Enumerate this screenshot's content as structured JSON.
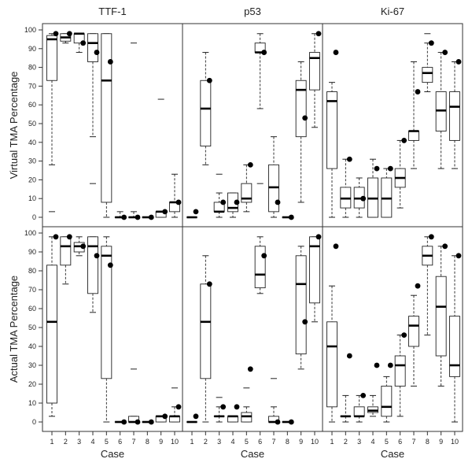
{
  "chart_data": {
    "type": "boxplot",
    "columns": [
      "TTF-1",
      "p53",
      "Ki-67"
    ],
    "rows": [
      "Virtual TMA Percentage",
      "Actual TMA Percentage"
    ],
    "xlabel": "Case",
    "categories": [
      "1",
      "2",
      "3",
      "4",
      "5",
      "6",
      "7",
      "8",
      "9",
      "10"
    ],
    "ylim": [
      0,
      100
    ],
    "yticks": [
      0,
      10,
      20,
      30,
      40,
      50,
      60,
      70,
      80,
      90,
      100
    ],
    "panels": [
      {
        "row": "Virtual TMA Percentage",
        "column": "TTF-1",
        "cases": [
          {
            "case": "1",
            "wlow": 28,
            "q1": 73,
            "median": 95,
            "q3": 97,
            "whigh": 98,
            "point": 98,
            "outliers": [
              3
            ]
          },
          {
            "case": "2",
            "wlow": 93,
            "q1": 94,
            "median": 96,
            "q3": 98,
            "whigh": 98,
            "point": 98,
            "outliers": []
          },
          {
            "case": "3",
            "wlow": 88,
            "q1": 93,
            "median": 98,
            "q3": 98,
            "whigh": 98,
            "point": 93,
            "outliers": []
          },
          {
            "case": "4",
            "wlow": 43,
            "q1": 83,
            "median": 93,
            "q3": 98,
            "whigh": 98,
            "point": 88,
            "outliers": [
              18
            ]
          },
          {
            "case": "5",
            "wlow": 0,
            "q1": 8,
            "median": 73,
            "q3": 98,
            "whigh": 98,
            "point": 83,
            "outliers": []
          },
          {
            "case": "6",
            "wlow": 0,
            "q1": 0,
            "median": 0,
            "q3": 0,
            "whigh": 3,
            "point": 0,
            "outliers": []
          },
          {
            "case": "7",
            "wlow": 0,
            "q1": 0,
            "median": 0,
            "q3": 0,
            "whigh": 3,
            "point": 0,
            "outliers": [
              93
            ]
          },
          {
            "case": "8",
            "wlow": 0,
            "q1": 0,
            "median": 0,
            "q3": 0,
            "whigh": 0,
            "point": 0,
            "outliers": []
          },
          {
            "case": "9",
            "wlow": 0,
            "q1": 0,
            "median": 3,
            "q3": 3,
            "whigh": 3,
            "point": 3,
            "outliers": [
              63
            ]
          },
          {
            "case": "10",
            "wlow": 0,
            "q1": 3,
            "median": 8,
            "q3": 8,
            "whigh": 23,
            "point": 8,
            "outliers": []
          }
        ]
      },
      {
        "row": "Virtual TMA Percentage",
        "column": "p53",
        "cases": [
          {
            "case": "1",
            "wlow": 0,
            "q1": 0,
            "median": 0,
            "q3": 0,
            "whigh": 0,
            "point": 3,
            "outliers": []
          },
          {
            "case": "2",
            "wlow": 28,
            "q1": 38,
            "median": 58,
            "q3": 73,
            "whigh": 88,
            "point": 73,
            "outliers": []
          },
          {
            "case": "3",
            "wlow": 0,
            "q1": 3,
            "median": 3,
            "q3": 8,
            "whigh": 13,
            "point": 8,
            "outliers": [
              23
            ]
          },
          {
            "case": "4",
            "wlow": 0,
            "q1": 3,
            "median": 5,
            "q3": 13,
            "whigh": 13,
            "point": 8,
            "outliers": []
          },
          {
            "case": "5",
            "wlow": 3,
            "q1": 8,
            "median": 10,
            "q3": 18,
            "whigh": 28,
            "point": 28,
            "outliers": []
          },
          {
            "case": "6",
            "wlow": 58,
            "q1": 88,
            "median": 88,
            "q3": 93,
            "whigh": 98,
            "point": 88,
            "outliers": [
              18
            ]
          },
          {
            "case": "7",
            "wlow": 0,
            "q1": 3,
            "median": 16,
            "q3": 28,
            "whigh": 43,
            "point": 8,
            "outliers": []
          },
          {
            "case": "8",
            "wlow": 0,
            "q1": 0,
            "median": 0,
            "q3": 0,
            "whigh": 0,
            "point": 0,
            "outliers": []
          },
          {
            "case": "9",
            "wlow": 8,
            "q1": 43,
            "median": 68,
            "q3": 73,
            "whigh": 83,
            "point": 53,
            "outliers": []
          },
          {
            "case": "10",
            "wlow": 48,
            "q1": 68,
            "median": 85,
            "q3": 88,
            "whigh": 98,
            "point": 98,
            "outliers": []
          }
        ]
      },
      {
        "row": "Virtual TMA Percentage",
        "column": "Ki-67",
        "cases": [
          {
            "case": "1",
            "wlow": 0,
            "q1": 26,
            "median": 62,
            "q3": 67,
            "whigh": 72,
            "point": 88,
            "outliers": []
          },
          {
            "case": "2",
            "wlow": 0,
            "q1": 5,
            "median": 10,
            "q3": 16,
            "whigh": 31,
            "point": 31,
            "outliers": []
          },
          {
            "case": "3",
            "wlow": 0,
            "q1": 5,
            "median": 10,
            "q3": 16,
            "whigh": 21,
            "point": 10,
            "outliers": []
          },
          {
            "case": "4",
            "wlow": 0,
            "q1": 0,
            "median": 10,
            "q3": 21,
            "whigh": 31,
            "point": 26,
            "outliers": []
          },
          {
            "case": "5",
            "wlow": 0,
            "q1": 0,
            "median": 10,
            "q3": 21,
            "whigh": 26,
            "point": 26,
            "outliers": []
          },
          {
            "case": "6",
            "wlow": 5,
            "q1": 16,
            "median": 21,
            "q3": 26,
            "whigh": 41,
            "point": 41,
            "outliers": []
          },
          {
            "case": "7",
            "wlow": 26,
            "q1": 41,
            "median": 46,
            "q3": 46,
            "whigh": 83,
            "point": 67,
            "outliers": []
          },
          {
            "case": "8",
            "wlow": 67,
            "q1": 72,
            "median": 77,
            "q3": 80,
            "whigh": 93,
            "point": 93,
            "outliers": [
              98
            ]
          },
          {
            "case": "9",
            "wlow": 26,
            "q1": 46,
            "median": 57,
            "q3": 67,
            "whigh": 88,
            "point": 88,
            "outliers": []
          },
          {
            "case": "10",
            "wlow": 26,
            "q1": 41,
            "median": 59,
            "q3": 67,
            "whigh": 83,
            "point": 83,
            "outliers": []
          }
        ]
      },
      {
        "row": "Actual TMA Percentage",
        "column": "TTF-1",
        "cases": [
          {
            "case": "1",
            "wlow": 3,
            "q1": 10,
            "median": 53,
            "q3": 83,
            "whigh": 98,
            "point": 98,
            "outliers": []
          },
          {
            "case": "2",
            "wlow": 73,
            "q1": 83,
            "median": 93,
            "q3": 98,
            "whigh": 98,
            "point": 98,
            "outliers": []
          },
          {
            "case": "3",
            "wlow": 88,
            "q1": 90,
            "median": 93,
            "q3": 95,
            "whigh": 98,
            "point": 93,
            "outliers": []
          },
          {
            "case": "4",
            "wlow": 58,
            "q1": 68,
            "median": 93,
            "q3": 98,
            "whigh": 98,
            "point": 88,
            "outliers": []
          },
          {
            "case": "5",
            "wlow": 0,
            "q1": 23,
            "median": 88,
            "q3": 93,
            "whigh": 98,
            "point": 83,
            "outliers": []
          },
          {
            "case": "6",
            "wlow": 0,
            "q1": 0,
            "median": 0,
            "q3": 0,
            "whigh": 0,
            "point": 0,
            "outliers": []
          },
          {
            "case": "7",
            "wlow": 0,
            "q1": 0,
            "median": 0,
            "q3": 3,
            "whigh": 3,
            "point": 0,
            "outliers": [
              28
            ]
          },
          {
            "case": "8",
            "wlow": 0,
            "q1": 0,
            "median": 0,
            "q3": 0,
            "whigh": 0,
            "point": 0,
            "outliers": []
          },
          {
            "case": "9",
            "wlow": 0,
            "q1": 0,
            "median": 3,
            "q3": 3,
            "whigh": 3,
            "point": 3,
            "outliers": []
          },
          {
            "case": "10",
            "wlow": 0,
            "q1": 0,
            "median": 3,
            "q3": 3,
            "whigh": 8,
            "point": 8,
            "outliers": [
              18
            ]
          }
        ]
      },
      {
        "row": "Actual TMA Percentage",
        "column": "p53",
        "cases": [
          {
            "case": "1",
            "wlow": 0,
            "q1": 0,
            "median": 0,
            "q3": 0,
            "whigh": 0,
            "point": 3,
            "outliers": []
          },
          {
            "case": "2",
            "wlow": 0,
            "q1": 23,
            "median": 53,
            "q3": 73,
            "whigh": 88,
            "point": 73,
            "outliers": []
          },
          {
            "case": "3",
            "wlow": 0,
            "q1": 3,
            "median": 3,
            "q3": 3,
            "whigh": 8,
            "point": 8,
            "outliers": [
              13
            ]
          },
          {
            "case": "4",
            "wlow": 0,
            "q1": 0,
            "median": 3,
            "q3": 3,
            "whigh": 3,
            "point": 8,
            "outliers": []
          },
          {
            "case": "5",
            "wlow": 0,
            "q1": 0,
            "median": 3,
            "q3": 5,
            "whigh": 8,
            "point": 28,
            "outliers": [
              18
            ]
          },
          {
            "case": "6",
            "wlow": 68,
            "q1": 71,
            "median": 78,
            "q3": 93,
            "whigh": 98,
            "point": 88,
            "outliers": []
          },
          {
            "case": "7",
            "wlow": 0,
            "q1": 0,
            "median": 0,
            "q3": 3,
            "whigh": 8,
            "point": 0,
            "outliers": [
              23
            ]
          },
          {
            "case": "8",
            "wlow": 0,
            "q1": 0,
            "median": 0,
            "q3": 0,
            "whigh": 0,
            "point": 0,
            "outliers": []
          },
          {
            "case": "9",
            "wlow": 28,
            "q1": 36,
            "median": 73,
            "q3": 88,
            "whigh": 93,
            "point": 53,
            "outliers": []
          },
          {
            "case": "10",
            "wlow": 53,
            "q1": 63,
            "median": 93,
            "q3": 98,
            "whigh": 98,
            "point": 98,
            "outliers": []
          }
        ]
      },
      {
        "row": "Actual TMA Percentage",
        "column": "Ki-67",
        "cases": [
          {
            "case": "1",
            "wlow": 0,
            "q1": 8,
            "median": 40,
            "q3": 53,
            "whigh": 72,
            "point": 93,
            "outliers": []
          },
          {
            "case": "2",
            "wlow": 0,
            "q1": 3,
            "median": 3,
            "q3": 3,
            "whigh": 14,
            "point": 35,
            "outliers": []
          },
          {
            "case": "3",
            "wlow": 0,
            "q1": 3,
            "median": 3,
            "q3": 8,
            "whigh": 14,
            "point": 14,
            "outliers": []
          },
          {
            "case": "4",
            "wlow": 3,
            "q1": 5,
            "median": 6,
            "q3": 8,
            "whigh": 14,
            "point": 30,
            "outliers": []
          },
          {
            "case": "5",
            "wlow": 0,
            "q1": 3,
            "median": 8,
            "q3": 19,
            "whigh": 24,
            "point": 30,
            "outliers": []
          },
          {
            "case": "6",
            "wlow": 3,
            "q1": 19,
            "median": 30,
            "q3": 35,
            "whigh": 46,
            "point": 46,
            "outliers": []
          },
          {
            "case": "7",
            "wlow": 19,
            "q1": 40,
            "median": 51,
            "q3": 56,
            "whigh": 67,
            "point": 72,
            "outliers": []
          },
          {
            "case": "8",
            "wlow": 46,
            "q1": 83,
            "median": 88,
            "q3": 93,
            "whigh": 98,
            "point": 98,
            "outliers": []
          },
          {
            "case": "9",
            "wlow": 19,
            "q1": 35,
            "median": 61,
            "q3": 77,
            "whigh": 93,
            "point": 93,
            "outliers": []
          },
          {
            "case": "10",
            "wlow": 0,
            "q1": 24,
            "median": 30,
            "q3": 56,
            "whigh": 88,
            "point": 88,
            "outliers": []
          }
        ]
      }
    ]
  }
}
